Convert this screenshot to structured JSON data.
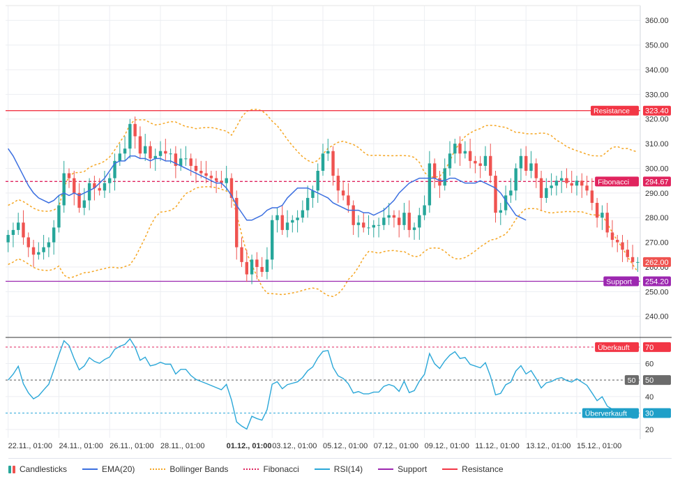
{
  "chart_data": {
    "type": "candlestick",
    "colors": {
      "up": "#26a69a",
      "down": "#ef5350",
      "ema": "#3b6fe0",
      "bollinger": "#f5a623",
      "fibonacci": "#e0245e",
      "rsi": "#2aa7d8",
      "support": "#9c27b0",
      "resistance": "#f23645",
      "grid": "#eceef2",
      "axis_text": "#333333"
    },
    "price_axis": {
      "min": 232,
      "max": 366,
      "ticks": [
        240,
        250,
        260,
        270,
        280,
        290,
        300,
        310,
        320,
        330,
        340,
        350,
        360
      ],
      "tick_labels": [
        "240.00",
        "250.00",
        "260.00",
        "270.00",
        "280.00",
        "290.00",
        "300.00",
        "310.00",
        "320.00",
        "330.00",
        "340.00",
        "350.00",
        "360.00"
      ]
    },
    "rsi_axis": {
      "min": 15,
      "max": 75,
      "ticks": [
        20,
        40,
        60
      ],
      "tick_labels": [
        "20",
        "40",
        "60"
      ]
    },
    "x_axis": {
      "bar_count": 125,
      "labels": [
        {
          "i": 0,
          "text": "22.11., 01:00",
          "bold": false
        },
        {
          "i": 10,
          "text": "24.11., 01:00",
          "bold": false
        },
        {
          "i": 20,
          "text": "26.11., 01:00",
          "bold": false
        },
        {
          "i": 30,
          "text": "28.11., 01:00",
          "bold": false
        },
        {
          "i": 43,
          "text": "01.12., 01:00",
          "bold": true
        },
        {
          "i": 52,
          "text": "03.12., 01:00",
          "bold": false
        },
        {
          "i": 62,
          "text": "05.12., 01:00",
          "bold": false
        },
        {
          "i": 72,
          "text": "07.12., 01:00",
          "bold": false
        },
        {
          "i": 82,
          "text": "09.12., 01:00",
          "bold": false
        },
        {
          "i": 92,
          "text": "11.12., 01:00",
          "bold": false
        },
        {
          "i": 102,
          "text": "13.12., 01:00",
          "bold": false
        },
        {
          "i": 112,
          "text": "15.12., 01:00",
          "bold": false
        }
      ]
    },
    "close": [
      273,
      275,
      278,
      272,
      268,
      265,
      266,
      268,
      270,
      276,
      285,
      298,
      296,
      290,
      284,
      287,
      294,
      292,
      291,
      294,
      296,
      303,
      306,
      308,
      318,
      313,
      306,
      309,
      304,
      305,
      307,
      306,
      306,
      301,
      304,
      304,
      301,
      299,
      298,
      297,
      296,
      295,
      294,
      296,
      288,
      268,
      262,
      257,
      263,
      260,
      258,
      263,
      279,
      281,
      275,
      278,
      279,
      280,
      283,
      288,
      291,
      299,
      306,
      307,
      297,
      291,
      289,
      285,
      277,
      278,
      276,
      276,
      277,
      277,
      280,
      281,
      280,
      277,
      282,
      275,
      276,
      281,
      285,
      302,
      296,
      293,
      300,
      306,
      310,
      306,
      307,
      303,
      302,
      301,
      305,
      297,
      282,
      283,
      289,
      291,
      300,
      305,
      299,
      302,
      296,
      288,
      292,
      293,
      295,
      296,
      294,
      293,
      295,
      293,
      291,
      286,
      280,
      282,
      274,
      271,
      270,
      267,
      264,
      262,
      262
    ],
    "open": [
      270,
      273,
      275,
      278,
      272,
      268,
      265,
      266,
      268,
      270,
      276,
      285,
      298,
      296,
      290,
      284,
      287,
      294,
      292,
      291,
      294,
      296,
      303,
      306,
      308,
      318,
      313,
      306,
      309,
      304,
      305,
      307,
      306,
      306,
      301,
      304,
      304,
      301,
      299,
      298,
      297,
      296,
      295,
      294,
      296,
      288,
      268,
      262,
      257,
      263,
      260,
      258,
      263,
      279,
      281,
      275,
      278,
      279,
      280,
      283,
      288,
      291,
      299,
      306,
      307,
      297,
      291,
      289,
      285,
      277,
      278,
      276,
      276,
      277,
      277,
      280,
      281,
      280,
      277,
      282,
      275,
      276,
      281,
      285,
      302,
      296,
      293,
      300,
      306,
      310,
      306,
      307,
      303,
      302,
      301,
      305,
      297,
      282,
      283,
      289,
      291,
      300,
      305,
      299,
      302,
      296,
      288,
      292,
      293,
      295,
      296,
      294,
      293,
      295,
      293,
      291,
      286,
      280,
      282,
      274,
      271,
      270,
      267,
      264,
      262
    ],
    "ema20": [
      308,
      305,
      301,
      297,
      293,
      290,
      288,
      287,
      286,
      287,
      289,
      290,
      289,
      290,
      289,
      290,
      291,
      292,
      294,
      296,
      299,
      302,
      303,
      303,
      305,
      305,
      304,
      304,
      303,
      304,
      304,
      303,
      303,
      302,
      301,
      300,
      299,
      298,
      297,
      296,
      295,
      294,
      294,
      292,
      289,
      285,
      282,
      279,
      279,
      280,
      281,
      283,
      284,
      284,
      285,
      288,
      290,
      292,
      292,
      292,
      291,
      290,
      289,
      288,
      286,
      285,
      284,
      283,
      283,
      283,
      282,
      282,
      281,
      282,
      283,
      285,
      287,
      290,
      292,
      294,
      295,
      296,
      296,
      296,
      296,
      295,
      295,
      296,
      296,
      295,
      294,
      294,
      294,
      295,
      294,
      293,
      292,
      290,
      287,
      284,
      281,
      280,
      279
    ]
  },
  "overlays": {
    "resistance": {
      "value": 323.4,
      "label": "Resistance",
      "value_text": "323.40"
    },
    "fibonacci": {
      "value": 294.67,
      "label": "Fibonacci",
      "value_text": "294.67"
    },
    "support": {
      "value": 254.2,
      "label": "Support",
      "value_text": "254.20"
    },
    "last_price": {
      "value": 262.0,
      "value_text": "262.00"
    },
    "overbought": {
      "value": 70,
      "label": "Überkauft",
      "value_text": "70"
    },
    "midline": {
      "value": 50,
      "label": "50",
      "value_text": "50"
    },
    "oversold": {
      "value": 30,
      "label": "Überverkauft",
      "value_text": "30"
    }
  },
  "legend": {
    "candles": "Candlesticks",
    "ema": "EMA(20)",
    "bollinger": "Bollinger Bands",
    "fibonacci": "Fibonacci",
    "rsi": "RSI(14)",
    "support": "Support",
    "resistance": "Resistance"
  }
}
